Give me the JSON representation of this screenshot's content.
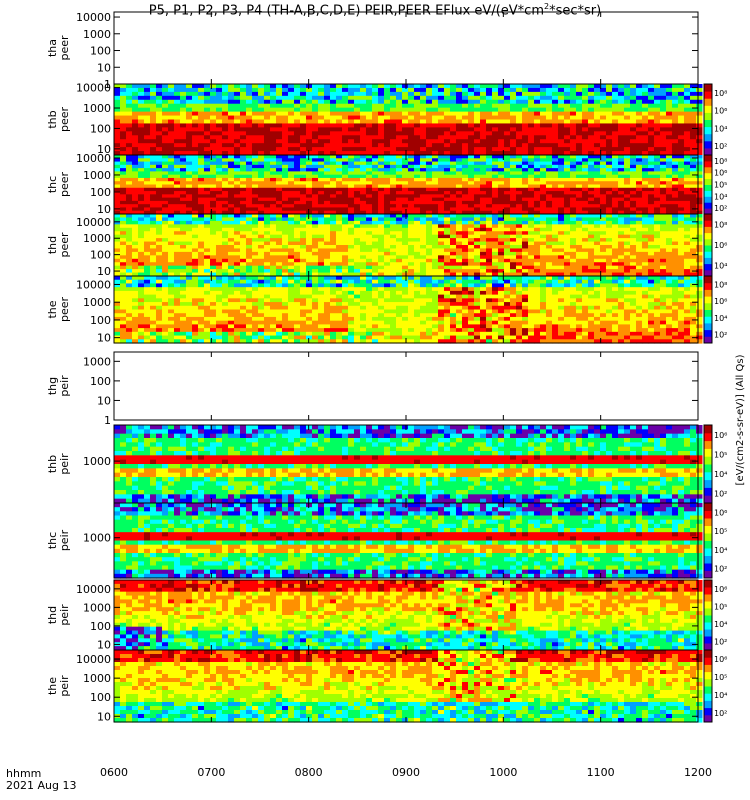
{
  "title": "P5, P1, P2, P3, P4 (TH-A,B,C,D,E) PEIR,PEER EFlux eV/(eV*cm2*sec*sr)",
  "title_parts": {
    "pre": "P5, P1, P2, P3, P4 (TH-A,B,C,D,E) PEIR,PEER EFlux eV/(eV*cm",
    "sup": "2",
    "post": "*sec*sr)"
  },
  "bottom": {
    "hhmm": "hhmm",
    "date": "2021 Aug 13"
  },
  "colorbar": {
    "labels_peer": "[eV/(cm2-s-sr-eV)] (All Qs)",
    "labels_peir": "[eV/(cm2-s-sr-eV)] (All Qs)",
    "full_label": "[eV/(cm2-s-sr-eV)] (All Qs)",
    "colors": [
      "#6a00a8",
      "#0000ff",
      "#00a0ff",
      "#00ffff",
      "#00ff60",
      "#a0ff00",
      "#ffff00",
      "#ff9000",
      "#ff0000",
      "#a00000"
    ]
  },
  "chart_data": {
    "type": "heatmap",
    "x_axis": {
      "ticks": [
        "0600",
        "0700",
        "0800",
        "0900",
        "1000",
        "1100",
        "1200"
      ],
      "label": "hhmm"
    },
    "panels": [
      {
        "name": "tha peer",
        "ylabel": [
          "tha",
          "peer"
        ],
        "yticks": [
          "1",
          "10",
          "100",
          "1000",
          "10000"
        ],
        "ylim": [
          1,
          20000
        ],
        "has_data": false,
        "colorbar_ticks": []
      },
      {
        "name": "thb peer",
        "ylabel": [
          "thb",
          "peer"
        ],
        "yticks": [
          "10",
          "100",
          "1000",
          "10000"
        ],
        "ylim": [
          5,
          15000
        ],
        "has_data": true,
        "colorbar_ticks": [
          "10²",
          "10⁴",
          "10⁶",
          "10⁸"
        ],
        "colorbar_range": [
          100,
          100000000
        ]
      },
      {
        "name": "thc peer",
        "ylabel": [
          "thc",
          "peer"
        ],
        "yticks": [
          "10",
          "100",
          "1000",
          "10000"
        ],
        "ylim": [
          5,
          15000
        ],
        "has_data": true,
        "colorbar_ticks": [
          "10²",
          "10⁴",
          "10⁵",
          "10⁶",
          "10⁸"
        ],
        "colorbar_range": [
          100,
          100000000
        ]
      },
      {
        "name": "thd peer",
        "ylabel": [
          "thd",
          "peer"
        ],
        "yticks": [
          "10",
          "100",
          "1000",
          "10000"
        ],
        "ylim": [
          5,
          30000
        ],
        "has_data": true,
        "colorbar_ticks": [
          "10⁴",
          "10⁶",
          "10⁸"
        ],
        "colorbar_range": [
          1000,
          100000000
        ]
      },
      {
        "name": "the peer",
        "ylabel": [
          "the",
          "peer"
        ],
        "yticks": [
          "10",
          "100",
          "1000",
          "10000"
        ],
        "ylim": [
          5,
          30000
        ],
        "has_data": true,
        "colorbar_ticks": [
          "10²",
          "10⁴",
          "10⁶",
          "10⁸"
        ],
        "colorbar_range": [
          100,
          100000000
        ]
      },
      {
        "name": "thg peir",
        "ylabel": [
          "thg",
          "peir"
        ],
        "yticks": [
          "1",
          "10",
          "100",
          "1000"
        ],
        "ylim": [
          1,
          3000
        ],
        "has_data": false,
        "colorbar_ticks": []
      },
      {
        "name": "thb peir",
        "ylabel": [
          "thb",
          "peir"
        ],
        "yticks": [
          "1000"
        ],
        "ylim": [
          200,
          4000
        ],
        "has_data": true,
        "colorbar_ticks": [
          "10²",
          "10⁴",
          "10⁵",
          "10⁶"
        ],
        "colorbar_range": [
          10,
          10000000
        ]
      },
      {
        "name": "thc peir",
        "ylabel": [
          "thc",
          "peir"
        ],
        "yticks": [
          "1000"
        ],
        "ylim": [
          200,
          4000
        ],
        "has_data": true,
        "colorbar_ticks": [
          "10²",
          "10⁴",
          "10⁵",
          "10⁶"
        ],
        "colorbar_range": [
          10,
          10000000
        ]
      },
      {
        "name": "thd peir",
        "ylabel": [
          "thd",
          "peir"
        ],
        "yticks": [
          "10",
          "100",
          "1000",
          "10000"
        ],
        "ylim": [
          5,
          30000
        ],
        "has_data": true,
        "colorbar_ticks": [
          "10²",
          "10⁴",
          "10⁵",
          "10⁶"
        ],
        "colorbar_range": [
          10,
          10000000
        ]
      },
      {
        "name": "the peir",
        "ylabel": [
          "the",
          "peir"
        ],
        "yticks": [
          "10",
          "100",
          "1000",
          "10000"
        ],
        "ylim": [
          5,
          30000
        ],
        "has_data": true,
        "colorbar_ticks": [
          "10²",
          "10⁴",
          "10⁵",
          "10⁶"
        ],
        "colorbar_range": [
          10,
          10000000
        ]
      }
    ]
  }
}
